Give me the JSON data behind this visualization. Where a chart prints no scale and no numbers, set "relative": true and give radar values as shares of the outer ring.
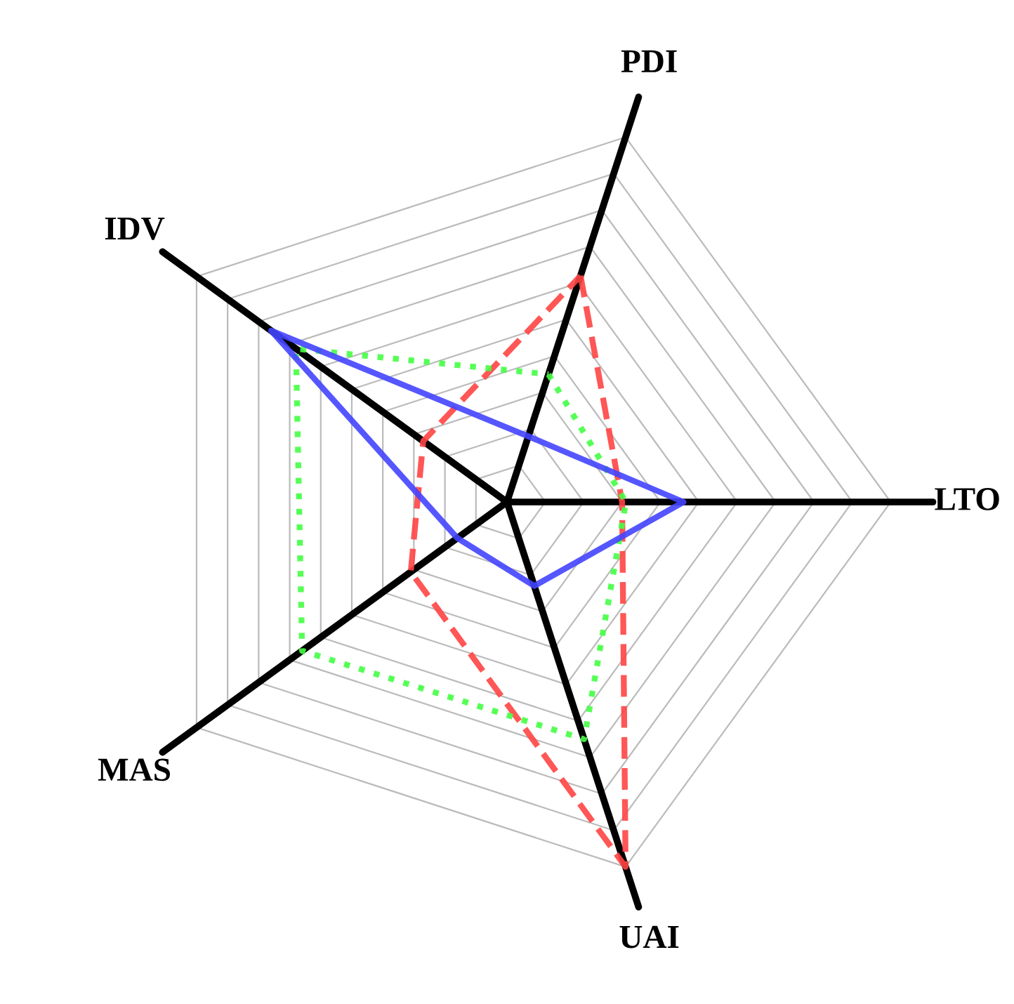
{
  "chart_data": {
    "type": "radar",
    "relative": true,
    "grid": true,
    "categories": [
      "PDI",
      "LTO",
      "UAI",
      "MAS",
      "IDV"
    ],
    "series": [
      {
        "color": "#ff4444",
        "line_style": "dashed",
        "values": [
          0.62,
          0.3,
          1.0,
          0.31,
          0.27
        ]
      },
      {
        "color": "#44ff44",
        "line_style": "dotted",
        "values": [
          0.35,
          0.31,
          0.65,
          0.66,
          0.68
        ]
      },
      {
        "color": "#4444ff",
        "line_style": "solid",
        "values": [
          0.18,
          0.46,
          0.23,
          0.16,
          0.76
        ]
      }
    ]
  }
}
